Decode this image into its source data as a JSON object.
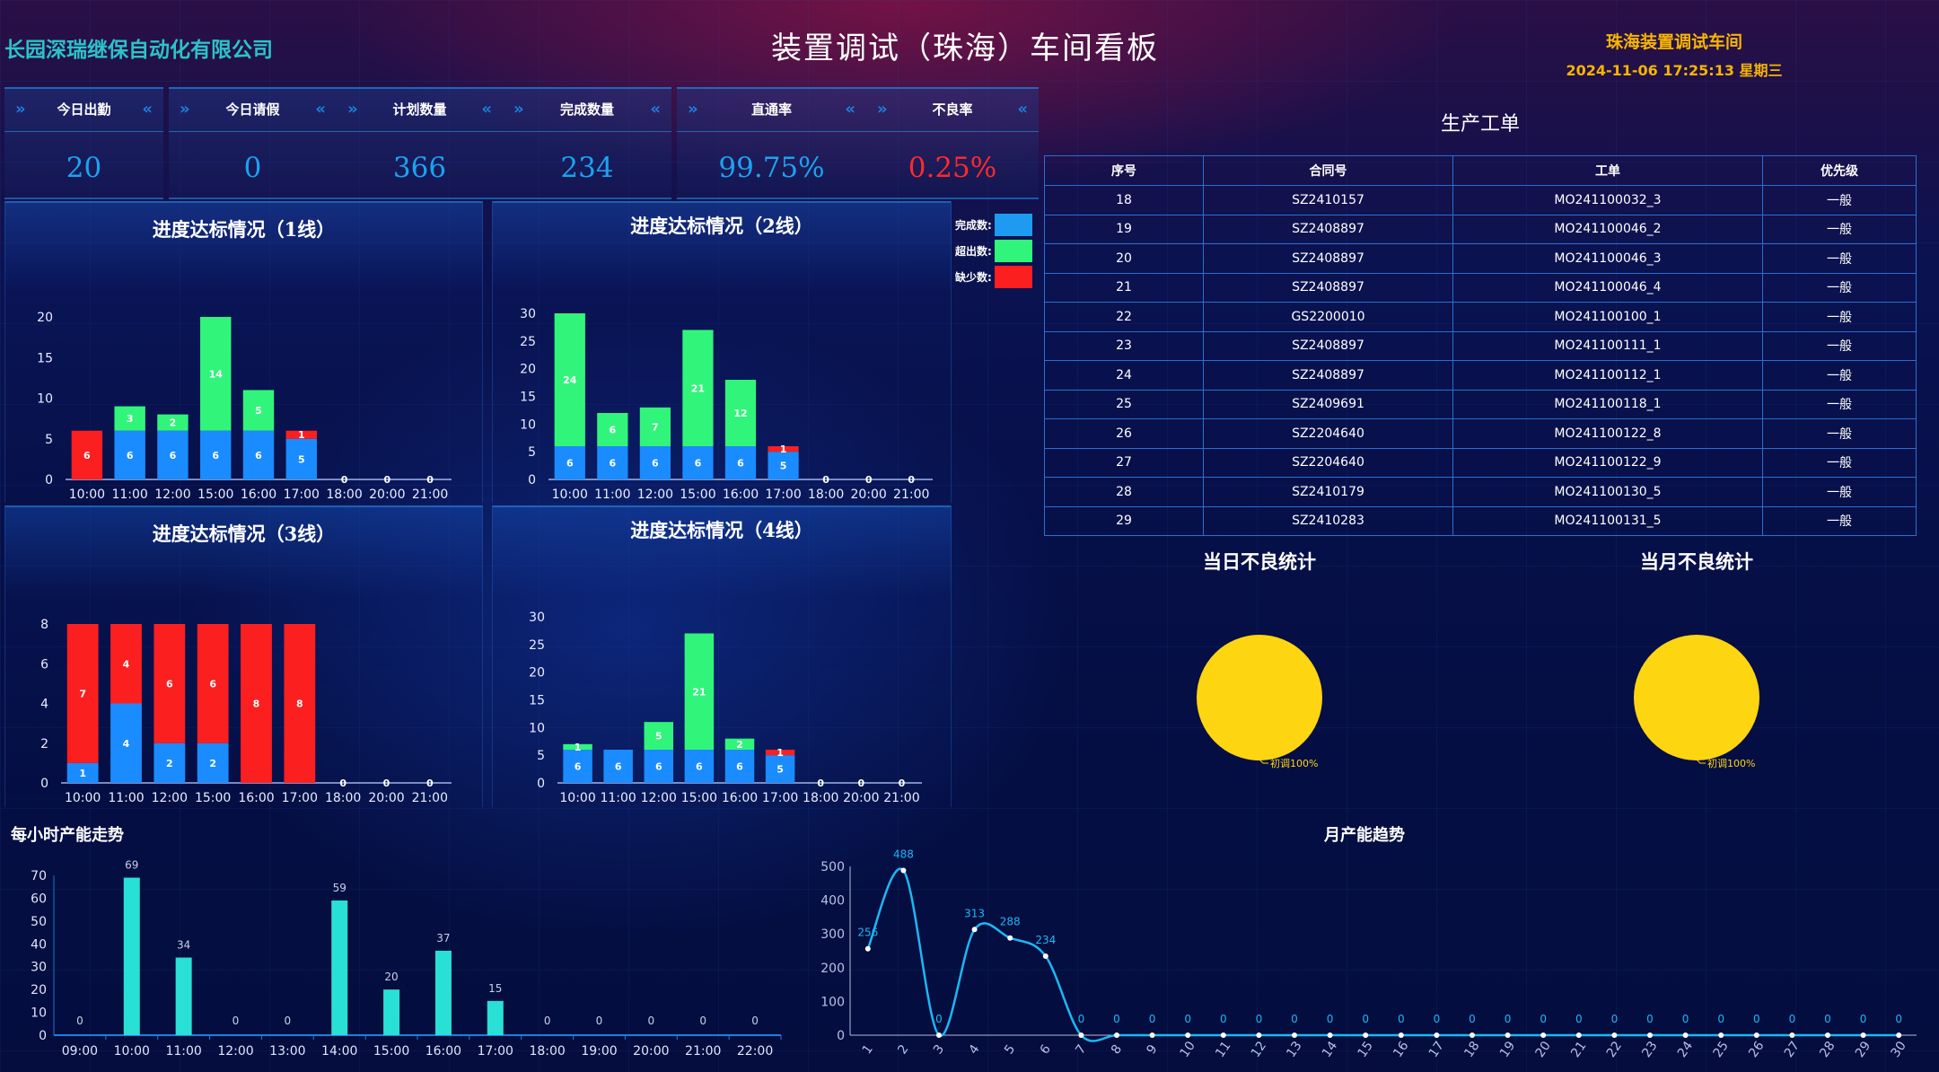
{
  "header": {
    "company": "长园深瑞继保自动化有限公司",
    "title": "装置调试（珠海）车间看板",
    "workshop": "珠海装置调试车间",
    "datetime": "2024-11-06 17:25:13 星期三"
  },
  "kpis": [
    {
      "label": "今日出勤",
      "value": "20",
      "color": "#1ba3f0"
    },
    {
      "label": "今日请假",
      "value": "0",
      "color": "#1ba3f0"
    },
    {
      "label": "计划数量",
      "value": "366",
      "color": "#1ba3f0"
    },
    {
      "label": "完成数量",
      "value": "234",
      "color": "#1ba3f0"
    },
    {
      "label": "直通率",
      "value": "99.75%",
      "color": "#1ba3f0"
    },
    {
      "label": "不良率",
      "value": "0.25%",
      "color": "#fc2a2a"
    }
  ],
  "legend": [
    {
      "label": "完成数:",
      "color": "#1e9bf0"
    },
    {
      "label": "超出数:",
      "color": "#31f57a"
    },
    {
      "label": "缺少数:",
      "color": "#fc1f1f"
    }
  ],
  "chart_data": [
    {
      "type": "bar",
      "stacked": true,
      "title": "进度达标情况（1线）",
      "categories": [
        "10:00",
        "11:00",
        "12:00",
        "15:00",
        "16:00",
        "17:00",
        "18:00",
        "20:00",
        "21:00"
      ],
      "ylim": [
        0,
        20
      ],
      "yticks": [
        0,
        5,
        10,
        15,
        20
      ],
      "series": [
        {
          "name": "完成数",
          "color": "#1a8cff",
          "values": [
            0,
            6,
            6,
            6,
            6,
            5,
            0,
            0,
            0
          ]
        },
        {
          "name": "超出数",
          "color": "#31f57a",
          "values": [
            0,
            3,
            2,
            14,
            5,
            0,
            0,
            0,
            0
          ]
        },
        {
          "name": "缺少数",
          "color": "#fc1f1f",
          "values": [
            6,
            0,
            0,
            0,
            0,
            1,
            0,
            0,
            0
          ]
        }
      ]
    },
    {
      "type": "bar",
      "stacked": true,
      "title": "进度达标情况（2线）",
      "categories": [
        "10:00",
        "11:00",
        "12:00",
        "15:00",
        "16:00",
        "17:00",
        "18:00",
        "20:00",
        "21:00"
      ],
      "ylim": [
        0,
        30
      ],
      "yticks": [
        0,
        5,
        10,
        15,
        20,
        25,
        30
      ],
      "series": [
        {
          "name": "完成数",
          "color": "#1a8cff",
          "values": [
            6,
            6,
            6,
            6,
            6,
            5,
            0,
            0,
            0
          ]
        },
        {
          "name": "超出数",
          "color": "#31f57a",
          "values": [
            24,
            6,
            7,
            21,
            12,
            0,
            0,
            0,
            0
          ]
        },
        {
          "name": "缺少数",
          "color": "#fc1f1f",
          "values": [
            0,
            0,
            0,
            0,
            0,
            1,
            0,
            0,
            0
          ]
        }
      ]
    },
    {
      "type": "bar",
      "stacked": true,
      "title": "进度达标情况（3线）",
      "categories": [
        "10:00",
        "11:00",
        "12:00",
        "15:00",
        "16:00",
        "17:00",
        "18:00",
        "20:00",
        "21:00"
      ],
      "ylim": [
        0,
        8
      ],
      "yticks": [
        0,
        2,
        4,
        6,
        8
      ],
      "series": [
        {
          "name": "完成数",
          "color": "#1a8cff",
          "values": [
            1,
            4,
            2,
            2,
            0,
            0,
            0,
            0,
            0
          ]
        },
        {
          "name": "超出数",
          "color": "#31f57a",
          "values": [
            0,
            0,
            0,
            0,
            0,
            0,
            0,
            0,
            0
          ]
        },
        {
          "name": "缺少数",
          "color": "#fc1f1f",
          "values": [
            7,
            4,
            6,
            6,
            8,
            8,
            0,
            0,
            0
          ]
        }
      ]
    },
    {
      "type": "bar",
      "stacked": true,
      "title": "进度达标情况（4线）",
      "categories": [
        "10:00",
        "11:00",
        "12:00",
        "15:00",
        "16:00",
        "17:00",
        "18:00",
        "20:00",
        "21:00"
      ],
      "ylim": [
        0,
        30
      ],
      "yticks": [
        0,
        5,
        10,
        15,
        20,
        25,
        30
      ],
      "series": [
        {
          "name": "完成数",
          "color": "#1a8cff",
          "values": [
            6,
            6,
            6,
            6,
            6,
            5,
            0,
            0,
            0
          ]
        },
        {
          "name": "超出数",
          "color": "#31f57a",
          "values": [
            1,
            0,
            5,
            21,
            2,
            0,
            0,
            0,
            0
          ]
        },
        {
          "name": "缺少数",
          "color": "#fc1f1f",
          "values": [
            0,
            0,
            0,
            0,
            0,
            1,
            0,
            0,
            0
          ]
        }
      ]
    },
    {
      "type": "pie",
      "title": "当日不良统计",
      "slices": [
        {
          "label": "初调100%",
          "name": "初调",
          "value": 100,
          "color": "#fed511"
        }
      ]
    },
    {
      "type": "pie",
      "title": "当月不良统计",
      "slices": [
        {
          "label": "初调100%",
          "name": "初调",
          "value": 100,
          "color": "#fed511"
        }
      ]
    },
    {
      "type": "bar",
      "title": "每小时产能走势",
      "categories": [
        "09:00",
        "10:00",
        "11:00",
        "12:00",
        "13:00",
        "14:00",
        "15:00",
        "16:00",
        "17:00",
        "18:00",
        "19:00",
        "20:00",
        "21:00",
        "22:00"
      ],
      "values": [
        0,
        69,
        34,
        0,
        0,
        59,
        20,
        37,
        15,
        0,
        0,
        0,
        0,
        0
      ],
      "ylim": [
        0,
        70
      ],
      "yticks": [
        0,
        10,
        20,
        30,
        40,
        50,
        60,
        70
      ],
      "color": "#29e0d6"
    },
    {
      "type": "line",
      "smooth": true,
      "title": "月产能趋势",
      "categories": [
        "1",
        "2",
        "3",
        "4",
        "5",
        "6",
        "7",
        "8",
        "9",
        "10",
        "11",
        "12",
        "13",
        "14",
        "15",
        "16",
        "17",
        "18",
        "19",
        "20",
        "21",
        "22",
        "23",
        "24",
        "25",
        "26",
        "27",
        "28",
        "29",
        "30"
      ],
      "values": [
        256,
        488,
        0,
        313,
        288,
        234,
        0,
        0,
        0,
        0,
        0,
        0,
        0,
        0,
        0,
        0,
        0,
        0,
        0,
        0,
        0,
        0,
        0,
        0,
        0,
        0,
        0,
        0,
        0,
        0
      ],
      "ylim": [
        0,
        500
      ],
      "yticks": [
        0,
        100,
        200,
        300,
        400,
        500
      ],
      "color": "#1bb8f5"
    }
  ],
  "orders": {
    "title": "生产工单",
    "columns": [
      "序号",
      "合同号",
      "工单",
      "优先级"
    ],
    "rows": [
      [
        "18",
        "SZ2410157",
        "MO241100032_3",
        "一般"
      ],
      [
        "19",
        "SZ2408897",
        "MO241100046_2",
        "一般"
      ],
      [
        "20",
        "SZ2408897",
        "MO241100046_3",
        "一般"
      ],
      [
        "21",
        "SZ2408897",
        "MO241100046_4",
        "一般"
      ],
      [
        "22",
        "GS2200010",
        "MO241100100_1",
        "一般"
      ],
      [
        "23",
        "SZ2408897",
        "MO241100111_1",
        "一般"
      ],
      [
        "24",
        "SZ2408897",
        "MO241100112_1",
        "一般"
      ],
      [
        "25",
        "SZ2409691",
        "MO241100118_1",
        "一般"
      ],
      [
        "26",
        "SZ2204640",
        "MO241100122_8",
        "一般"
      ],
      [
        "27",
        "SZ2204640",
        "MO241100122_9",
        "一般"
      ],
      [
        "28",
        "SZ2410179",
        "MO241100130_5",
        "一般"
      ],
      [
        "29",
        "SZ2410283",
        "MO241100131_5",
        "一般"
      ]
    ]
  }
}
